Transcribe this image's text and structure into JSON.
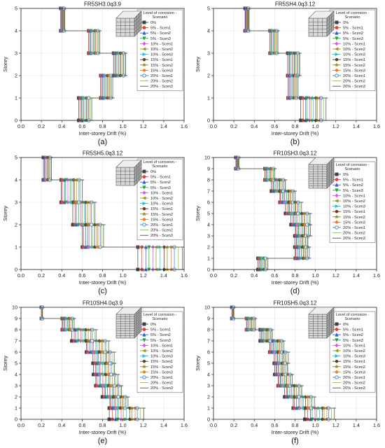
{
  "figure": {
    "legend": {
      "title": "Level of corrosion - Scenario",
      "entries": [
        {
          "label": "0%",
          "color": "#404040",
          "marker": "square"
        },
        {
          "label": "5% - Scen1",
          "color": "#e8403a",
          "marker": "circle"
        },
        {
          "label": "5% - Scen2",
          "color": "#2f5fd0",
          "marker": "triangle-up"
        },
        {
          "label": "5% - Scen3",
          "color": "#1aaa3a",
          "marker": "triangle-down"
        },
        {
          "label": "10% - Scen1",
          "color": "#e055e0",
          "marker": "diamond"
        },
        {
          "label": "10% - Scen2",
          "color": "#9a9a20",
          "marker": "triangle-left"
        },
        {
          "label": "10% - Scen3",
          "color": "#18c8d8",
          "marker": "triangle-right"
        },
        {
          "label": "15% - Scen1",
          "color": "#6b3a1e",
          "marker": "hexagon"
        },
        {
          "label": "15% - Scen2",
          "color": "#8c8c1a",
          "marker": "star"
        },
        {
          "label": "15% - Scen3",
          "color": "#f07a20",
          "marker": "pentagon"
        },
        {
          "label": "20% - Scen1",
          "color": "#3a7ad8",
          "marker": "circle-open"
        },
        {
          "label": "20% - Scen2",
          "color": "#7ac82a",
          "marker": "line"
        },
        {
          "label": "20% - Scen3",
          "color": "#505050",
          "marker": "line"
        }
      ]
    }
  },
  "chart_data": [
    {
      "type": "line",
      "panel_label": "(a)",
      "title": "FR5SH3.0q3.9",
      "xlabel": "Inter-storey Drift (%)",
      "ylabel": "Storey",
      "xlim": [
        0.0,
        1.6
      ],
      "ylim": [
        0,
        5
      ],
      "xticks": [
        0.0,
        0.2,
        0.4,
        0.6,
        0.8,
        1.0,
        1.2,
        1.4,
        1.6
      ],
      "yticks": [
        0,
        1,
        2,
        3,
        4,
        5
      ],
      "storey_drifts_min": [
        0.57,
        0.78,
        0.91,
        0.66,
        0.39
      ],
      "storey_drifts_max": [
        0.69,
        0.9,
        1.03,
        0.77,
        0.43
      ],
      "grid": true,
      "legend_position": "top-right"
    },
    {
      "type": "line",
      "panel_label": "(b)",
      "title": "FR5SH4.0q3.12",
      "xlabel": "Inter-storey Drift (%)",
      "ylabel": "Storey",
      "xlim": [
        0.0,
        1.6
      ],
      "ylim": [
        0,
        5
      ],
      "xticks": [
        0.0,
        0.2,
        0.4,
        0.6,
        0.8,
        1.0,
        1.2,
        1.4,
        1.6
      ],
      "yticks": [
        0,
        1,
        2,
        3,
        4,
        5
      ],
      "storey_drifts_min": [
        0.86,
        0.73,
        0.73,
        0.55,
        0.31
      ],
      "storey_drifts_max": [
        1.1,
        0.83,
        0.85,
        0.63,
        0.35
      ],
      "grid": true,
      "legend_position": "top-right"
    },
    {
      "type": "line",
      "panel_label": "(c)",
      "title": "FR5SH5.0q3.12",
      "xlabel": "Inter-storey Drift (%)",
      "ylabel": "Storey",
      "xlim": [
        0.0,
        1.6
      ],
      "ylim": [
        0,
        5
      ],
      "xticks": [
        0.0,
        0.2,
        0.4,
        0.6,
        0.8,
        1.0,
        1.2,
        1.4,
        1.6
      ],
      "yticks": [
        0,
        1,
        2,
        3,
        4,
        5
      ],
      "storey_drifts_min": [
        1.15,
        0.6,
        0.51,
        0.39,
        0.22
      ],
      "storey_drifts_max": [
        1.58,
        0.81,
        0.73,
        0.6,
        0.3
      ],
      "grid": true,
      "legend_position": "top-right"
    },
    {
      "type": "line",
      "panel_label": "(d)",
      "title": "FR10SH3.0q3.12",
      "xlabel": "Inter-storey Drift (%)",
      "ylabel": "Storey",
      "xlim": [
        0.0,
        1.6
      ],
      "ylim": [
        0,
        10
      ],
      "xticks": [
        0.0,
        0.2,
        0.4,
        0.6,
        0.8,
        1.0,
        1.2,
        1.4,
        1.6
      ],
      "yticks": [
        0,
        1,
        2,
        3,
        4,
        5,
        6,
        7,
        8,
        9,
        10
      ],
      "storey_drifts_min": [
        0.44,
        0.8,
        0.8,
        0.8,
        0.76,
        0.71,
        0.65,
        0.57,
        0.5,
        0.22
      ],
      "storey_drifts_max": [
        0.53,
        0.94,
        0.93,
        0.95,
        0.95,
        0.86,
        0.8,
        0.71,
        0.6,
        0.25
      ],
      "grid": true,
      "legend_position": "right"
    },
    {
      "type": "line",
      "panel_label": "(e)",
      "title": "FR10SH4.0q3.9",
      "xlabel": "Inter-storey Drift (%)",
      "ylabel": "Storey",
      "xlim": [
        0.0,
        1.6
      ],
      "ylim": [
        0,
        10
      ],
      "xticks": [
        0.0,
        0.2,
        0.4,
        0.6,
        0.8,
        1.0,
        1.2,
        1.4,
        1.6
      ],
      "yticks": [
        0,
        1,
        2,
        3,
        4,
        5,
        6,
        7,
        8,
        9,
        10
      ],
      "storey_drifts_min": [
        0.87,
        0.87,
        0.8,
        0.73,
        0.71,
        0.71,
        0.64,
        0.5,
        0.4,
        0.2
      ],
      "storey_drifts_max": [
        1.2,
        1.05,
        0.99,
        0.95,
        0.92,
        0.91,
        0.86,
        0.74,
        0.52,
        0.21
      ],
      "grid": true,
      "legend_position": "right"
    },
    {
      "type": "line",
      "panel_label": "(f)",
      "title": "FR10SH5.0q3.12",
      "xlabel": "Inter-storey Drift (%)",
      "ylabel": "Storey",
      "xlim": [
        0.0,
        1.6
      ],
      "ylim": [
        0,
        10
      ],
      "xticks": [
        0.0,
        0.2,
        0.4,
        0.6,
        0.8,
        1.0,
        1.2,
        1.4,
        1.6
      ],
      "yticks": [
        0,
        1,
        2,
        3,
        4,
        5,
        6,
        7,
        8,
        9,
        10
      ],
      "storey_drifts_min": [
        0.9,
        0.78,
        0.7,
        0.63,
        0.6,
        0.6,
        0.55,
        0.46,
        0.32,
        0.18
      ],
      "storey_drifts_max": [
        1.18,
        0.99,
        0.87,
        0.77,
        0.73,
        0.73,
        0.69,
        0.58,
        0.41,
        0.2
      ],
      "grid": true,
      "legend_position": "right"
    }
  ]
}
